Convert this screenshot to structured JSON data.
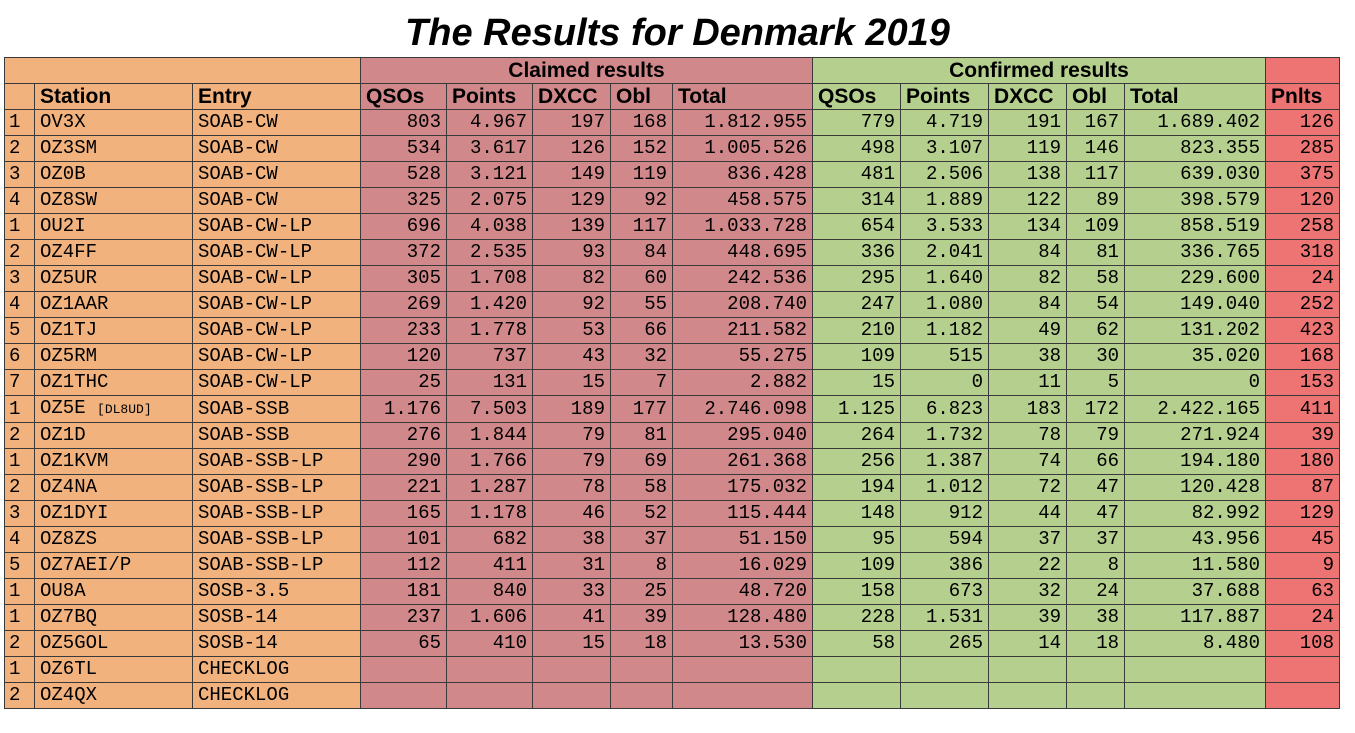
{
  "title": "The Results for Denmark 2019",
  "group_headers": {
    "claimed": "Claimed results",
    "confirmed": "Confirmed results"
  },
  "columns": {
    "station": "Station",
    "entry": "Entry",
    "claimed_qsos": "QSOs",
    "claimed_points": "Points",
    "claimed_dxcc": "DXCC",
    "claimed_obl": "Obl",
    "claimed_total": "Total",
    "confirmed_qsos": "QSOs",
    "confirmed_points": "Points",
    "confirmed_dxcc": "DXCC",
    "confirmed_obl": "Obl",
    "confirmed_total": "Total",
    "penalties": "Pnlts"
  },
  "colors": {
    "station_block": "#f1b27e",
    "claimed_block": "#d0888a",
    "confirmed_block": "#b5cf8e",
    "penalties_block": "#ee7474"
  },
  "rows": [
    {
      "rank": "1",
      "station": "OV3X",
      "operator": "",
      "entry": "SOAB-CW",
      "c_qsos": "803",
      "c_points": "4.967",
      "c_dxcc": "197",
      "c_obl": "168",
      "c_total": "1.812.955",
      "f_qsos": "779",
      "f_points": "4.719",
      "f_dxcc": "191",
      "f_obl": "167",
      "f_total": "1.689.402",
      "pnlts": "126"
    },
    {
      "rank": "2",
      "station": "OZ3SM",
      "operator": "",
      "entry": "SOAB-CW",
      "c_qsos": "534",
      "c_points": "3.617",
      "c_dxcc": "126",
      "c_obl": "152",
      "c_total": "1.005.526",
      "f_qsos": "498",
      "f_points": "3.107",
      "f_dxcc": "119",
      "f_obl": "146",
      "f_total": "823.355",
      "pnlts": "285"
    },
    {
      "rank": "3",
      "station": "OZ0B",
      "operator": "",
      "entry": "SOAB-CW",
      "c_qsos": "528",
      "c_points": "3.121",
      "c_dxcc": "149",
      "c_obl": "119",
      "c_total": "836.428",
      "f_qsos": "481",
      "f_points": "2.506",
      "f_dxcc": "138",
      "f_obl": "117",
      "f_total": "639.030",
      "pnlts": "375"
    },
    {
      "rank": "4",
      "station": "OZ8SW",
      "operator": "",
      "entry": "SOAB-CW",
      "c_qsos": "325",
      "c_points": "2.075",
      "c_dxcc": "129",
      "c_obl": "92",
      "c_total": "458.575",
      "f_qsos": "314",
      "f_points": "1.889",
      "f_dxcc": "122",
      "f_obl": "89",
      "f_total": "398.579",
      "pnlts": "120"
    },
    {
      "rank": "1",
      "station": "OU2I",
      "operator": "",
      "entry": "SOAB-CW-LP",
      "c_qsos": "696",
      "c_points": "4.038",
      "c_dxcc": "139",
      "c_obl": "117",
      "c_total": "1.033.728",
      "f_qsos": "654",
      "f_points": "3.533",
      "f_dxcc": "134",
      "f_obl": "109",
      "f_total": "858.519",
      "pnlts": "258"
    },
    {
      "rank": "2",
      "station": "OZ4FF",
      "operator": "",
      "entry": "SOAB-CW-LP",
      "c_qsos": "372",
      "c_points": "2.535",
      "c_dxcc": "93",
      "c_obl": "84",
      "c_total": "448.695",
      "f_qsos": "336",
      "f_points": "2.041",
      "f_dxcc": "84",
      "f_obl": "81",
      "f_total": "336.765",
      "pnlts": "318"
    },
    {
      "rank": "3",
      "station": "OZ5UR",
      "operator": "",
      "entry": "SOAB-CW-LP",
      "c_qsos": "305",
      "c_points": "1.708",
      "c_dxcc": "82",
      "c_obl": "60",
      "c_total": "242.536",
      "f_qsos": "295",
      "f_points": "1.640",
      "f_dxcc": "82",
      "f_obl": "58",
      "f_total": "229.600",
      "pnlts": "24"
    },
    {
      "rank": "4",
      "station": "OZ1AAR",
      "operator": "",
      "entry": "SOAB-CW-LP",
      "c_qsos": "269",
      "c_points": "1.420",
      "c_dxcc": "92",
      "c_obl": "55",
      "c_total": "208.740",
      "f_qsos": "247",
      "f_points": "1.080",
      "f_dxcc": "84",
      "f_obl": "54",
      "f_total": "149.040",
      "pnlts": "252"
    },
    {
      "rank": "5",
      "station": "OZ1TJ",
      "operator": "",
      "entry": "SOAB-CW-LP",
      "c_qsos": "233",
      "c_points": "1.778",
      "c_dxcc": "53",
      "c_obl": "66",
      "c_total": "211.582",
      "f_qsos": "210",
      "f_points": "1.182",
      "f_dxcc": "49",
      "f_obl": "62",
      "f_total": "131.202",
      "pnlts": "423"
    },
    {
      "rank": "6",
      "station": "OZ5RM",
      "operator": "",
      "entry": "SOAB-CW-LP",
      "c_qsos": "120",
      "c_points": "737",
      "c_dxcc": "43",
      "c_obl": "32",
      "c_total": "55.275",
      "f_qsos": "109",
      "f_points": "515",
      "f_dxcc": "38",
      "f_obl": "30",
      "f_total": "35.020",
      "pnlts": "168"
    },
    {
      "rank": "7",
      "station": "OZ1THC",
      "operator": "",
      "entry": "SOAB-CW-LP",
      "c_qsos": "25",
      "c_points": "131",
      "c_dxcc": "15",
      "c_obl": "7",
      "c_total": "2.882",
      "f_qsos": "15",
      "f_points": "0",
      "f_dxcc": "11",
      "f_obl": "5",
      "f_total": "0",
      "pnlts": "153"
    },
    {
      "rank": "1",
      "station": "OZ5E",
      "operator": "[DL8UD]",
      "entry": "SOAB-SSB",
      "c_qsos": "1.176",
      "c_points": "7.503",
      "c_dxcc": "189",
      "c_obl": "177",
      "c_total": "2.746.098",
      "f_qsos": "1.125",
      "f_points": "6.823",
      "f_dxcc": "183",
      "f_obl": "172",
      "f_total": "2.422.165",
      "pnlts": "411"
    },
    {
      "rank": "2",
      "station": "OZ1D",
      "operator": "",
      "entry": "SOAB-SSB",
      "c_qsos": "276",
      "c_points": "1.844",
      "c_dxcc": "79",
      "c_obl": "81",
      "c_total": "295.040",
      "f_qsos": "264",
      "f_points": "1.732",
      "f_dxcc": "78",
      "f_obl": "79",
      "f_total": "271.924",
      "pnlts": "39"
    },
    {
      "rank": "1",
      "station": "OZ1KVM",
      "operator": "",
      "entry": "SOAB-SSB-LP",
      "c_qsos": "290",
      "c_points": "1.766",
      "c_dxcc": "79",
      "c_obl": "69",
      "c_total": "261.368",
      "f_qsos": "256",
      "f_points": "1.387",
      "f_dxcc": "74",
      "f_obl": "66",
      "f_total": "194.180",
      "pnlts": "180"
    },
    {
      "rank": "2",
      "station": "OZ4NA",
      "operator": "",
      "entry": "SOAB-SSB-LP",
      "c_qsos": "221",
      "c_points": "1.287",
      "c_dxcc": "78",
      "c_obl": "58",
      "c_total": "175.032",
      "f_qsos": "194",
      "f_points": "1.012",
      "f_dxcc": "72",
      "f_obl": "47",
      "f_total": "120.428",
      "pnlts": "87"
    },
    {
      "rank": "3",
      "station": "OZ1DYI",
      "operator": "",
      "entry": "SOAB-SSB-LP",
      "c_qsos": "165",
      "c_points": "1.178",
      "c_dxcc": "46",
      "c_obl": "52",
      "c_total": "115.444",
      "f_qsos": "148",
      "f_points": "912",
      "f_dxcc": "44",
      "f_obl": "47",
      "f_total": "82.992",
      "pnlts": "129"
    },
    {
      "rank": "4",
      "station": "OZ8ZS",
      "operator": "",
      "entry": "SOAB-SSB-LP",
      "c_qsos": "101",
      "c_points": "682",
      "c_dxcc": "38",
      "c_obl": "37",
      "c_total": "51.150",
      "f_qsos": "95",
      "f_points": "594",
      "f_dxcc": "37",
      "f_obl": "37",
      "f_total": "43.956",
      "pnlts": "45"
    },
    {
      "rank": "5",
      "station": "OZ7AEI/P",
      "operator": "",
      "entry": "SOAB-SSB-LP",
      "c_qsos": "112",
      "c_points": "411",
      "c_dxcc": "31",
      "c_obl": "8",
      "c_total": "16.029",
      "f_qsos": "109",
      "f_points": "386",
      "f_dxcc": "22",
      "f_obl": "8",
      "f_total": "11.580",
      "pnlts": "9"
    },
    {
      "rank": "1",
      "station": "OU8A",
      "operator": "",
      "entry": "SOSB-3.5",
      "c_qsos": "181",
      "c_points": "840",
      "c_dxcc": "33",
      "c_obl": "25",
      "c_total": "48.720",
      "f_qsos": "158",
      "f_points": "673",
      "f_dxcc": "32",
      "f_obl": "24",
      "f_total": "37.688",
      "pnlts": "63"
    },
    {
      "rank": "1",
      "station": "OZ7BQ",
      "operator": "",
      "entry": "SOSB-14",
      "c_qsos": "237",
      "c_points": "1.606",
      "c_dxcc": "41",
      "c_obl": "39",
      "c_total": "128.480",
      "f_qsos": "228",
      "f_points": "1.531",
      "f_dxcc": "39",
      "f_obl": "38",
      "f_total": "117.887",
      "pnlts": "24"
    },
    {
      "rank": "2",
      "station": "OZ5GOL",
      "operator": "",
      "entry": "SOSB-14",
      "c_qsos": "65",
      "c_points": "410",
      "c_dxcc": "15",
      "c_obl": "18",
      "c_total": "13.530",
      "f_qsos": "58",
      "f_points": "265",
      "f_dxcc": "14",
      "f_obl": "18",
      "f_total": "8.480",
      "pnlts": "108"
    },
    {
      "rank": "1",
      "station": "OZ6TL",
      "operator": "",
      "entry": "CHECKLOG",
      "c_qsos": "",
      "c_points": "",
      "c_dxcc": "",
      "c_obl": "",
      "c_total": "",
      "f_qsos": "",
      "f_points": "",
      "f_dxcc": "",
      "f_obl": "",
      "f_total": "",
      "pnlts": ""
    },
    {
      "rank": "2",
      "station": "OZ4QX",
      "operator": "",
      "entry": "CHECKLOG",
      "c_qsos": "",
      "c_points": "",
      "c_dxcc": "",
      "c_obl": "",
      "c_total": "",
      "f_qsos": "",
      "f_points": "",
      "f_dxcc": "",
      "f_obl": "",
      "f_total": "",
      "pnlts": ""
    }
  ]
}
